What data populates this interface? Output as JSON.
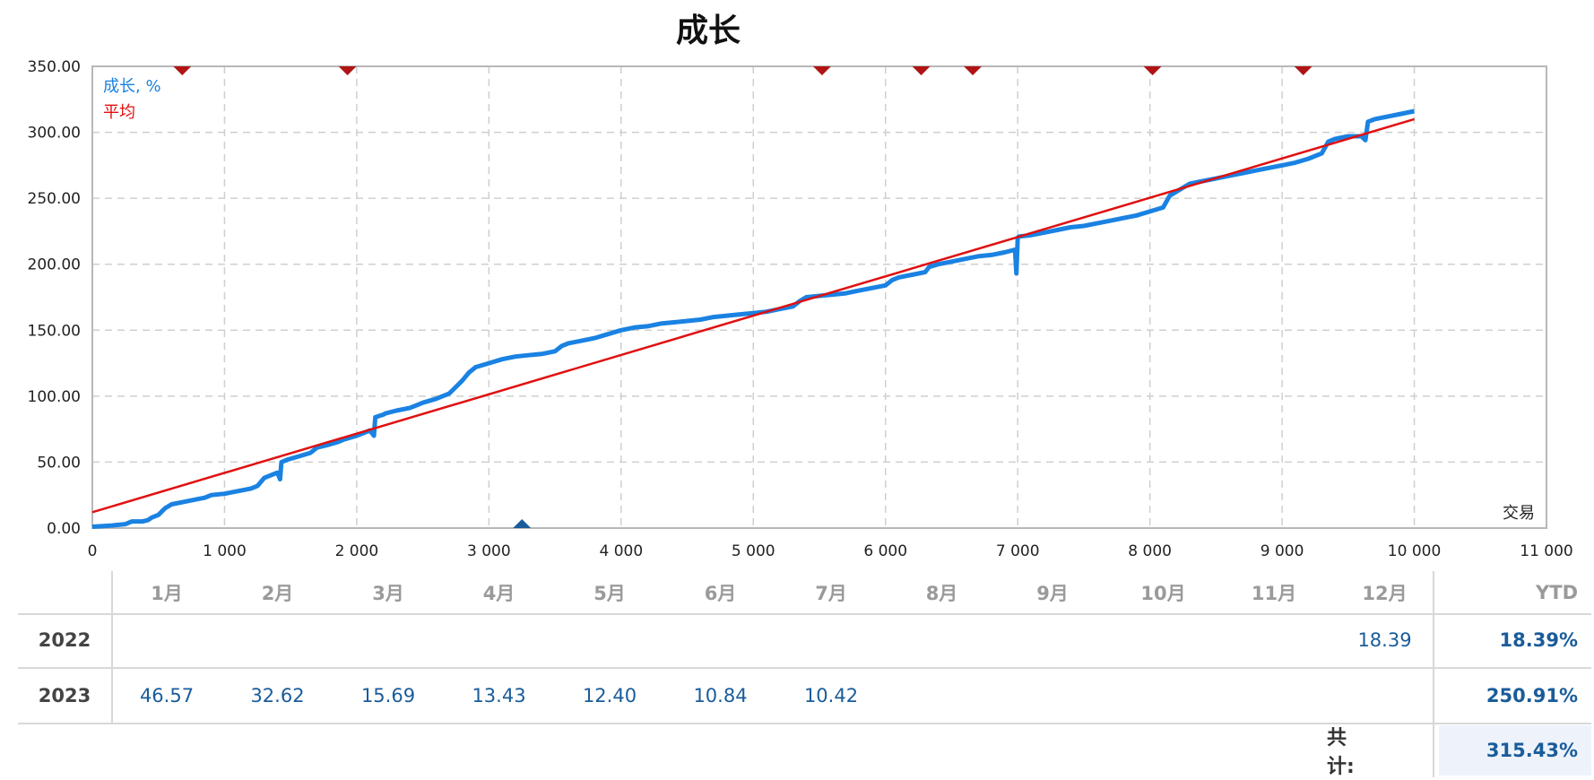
{
  "chart_data": {
    "type": "line",
    "title": "成长",
    "x_axis_label": "交易",
    "xlim": [
      0,
      11000
    ],
    "ylim": [
      0,
      350
    ],
    "x_ticks": [
      {
        "value": 0,
        "label": "0"
      },
      {
        "value": 1000,
        "label": "1 000"
      },
      {
        "value": 2000,
        "label": "2 000"
      },
      {
        "value": 3000,
        "label": "3 000"
      },
      {
        "value": 4000,
        "label": "4 000"
      },
      {
        "value": 5000,
        "label": "5 000"
      },
      {
        "value": 6000,
        "label": "6 000"
      },
      {
        "value": 7000,
        "label": "7 000"
      },
      {
        "value": 8000,
        "label": "8 000"
      },
      {
        "value": 9000,
        "label": "9 000"
      },
      {
        "value": 10000,
        "label": "10 000"
      },
      {
        "value": 11000,
        "label": "11 000"
      }
    ],
    "y_ticks": [
      {
        "value": 0,
        "label": "0.00"
      },
      {
        "value": 50,
        "label": "50.00"
      },
      {
        "value": 100,
        "label": "100.00"
      },
      {
        "value": 150,
        "label": "150.00"
      },
      {
        "value": 200,
        "label": "200.00"
      },
      {
        "value": 250,
        "label": "250.00"
      },
      {
        "value": 300,
        "label": "300.00"
      },
      {
        "value": 350,
        "label": "350.00"
      }
    ],
    "grid": true,
    "legend_position": "top-left",
    "series": [
      {
        "name": "成长, %",
        "color": "#1a82e2",
        "x": [
          0,
          150,
          250,
          300,
          380,
          420,
          450,
          500,
          550,
          600,
          700,
          800,
          850,
          900,
          1000,
          1100,
          1200,
          1250,
          1300,
          1350,
          1400,
          1420,
          1430,
          1480,
          1550,
          1650,
          1700,
          1780,
          1850,
          1900,
          2000,
          2100,
          2130,
          2140,
          2200,
          2220,
          2300,
          2400,
          2450,
          2500,
          2600,
          2700,
          2750,
          2800,
          2850,
          2900,
          3000,
          3100,
          3200,
          3300,
          3400,
          3500,
          3550,
          3600,
          3700,
          3800,
          3900,
          4000,
          4100,
          4200,
          4300,
          4400,
          4500,
          4600,
          4700,
          4800,
          4900,
          5000,
          5100,
          5200,
          5300,
          5350,
          5400,
          5500,
          5600,
          5700,
          5800,
          5900,
          6000,
          6050,
          6100,
          6200,
          6300,
          6330,
          6400,
          6500,
          6600,
          6700,
          6800,
          6900,
          6980,
          6990,
          7000,
          7010,
          7100,
          7200,
          7300,
          7400,
          7500,
          7600,
          7700,
          7800,
          7900,
          8000,
          8100,
          8150,
          8200,
          8250,
          8300,
          8400,
          8500,
          8600,
          8700,
          8800,
          8900,
          9000,
          9100,
          9200,
          9300,
          9350,
          9400,
          9500,
          9600,
          9630,
          9650,
          9700,
          9800,
          9900,
          10000
        ],
        "values": [
          1,
          2,
          3,
          5,
          5,
          6,
          8,
          10,
          15,
          18,
          20,
          22,
          23,
          25,
          26,
          28,
          30,
          32,
          38,
          40,
          42,
          37,
          50,
          52,
          54,
          57,
          61,
          63,
          65,
          67,
          70,
          74,
          70,
          84,
          86,
          87,
          89,
          91,
          93,
          95,
          98,
          102,
          107,
          112,
          118,
          122,
          125,
          128,
          130,
          131,
          132,
          134,
          138,
          140,
          142,
          144,
          147,
          150,
          152,
          153,
          155,
          156,
          157,
          158,
          160,
          161,
          162,
          163,
          164,
          166,
          168,
          172,
          175,
          176,
          177,
          178,
          180,
          182,
          184,
          188,
          190,
          192,
          194,
          198,
          200,
          202,
          204,
          206,
          207,
          209,
          211,
          193,
          220,
          221,
          222,
          224,
          226,
          228,
          229,
          231,
          233,
          235,
          237,
          240,
          243,
          252,
          255,
          258,
          261,
          263,
          265,
          267,
          269,
          271,
          273,
          275,
          277,
          280,
          284,
          293,
          295,
          297,
          297,
          294,
          308,
          310,
          312,
          314,
          316
        ]
      },
      {
        "name": "平均",
        "color": "#e01010",
        "x": [
          0,
          10000
        ],
        "values": [
          12,
          310
        ]
      }
    ],
    "top_markers_x": [
      680,
      1930,
      5520,
      6270,
      6660,
      8020,
      9160
    ],
    "bottom_markers_x": [
      3250
    ]
  },
  "returns_table": {
    "months": [
      "1月",
      "2月",
      "3月",
      "4月",
      "5月",
      "6月",
      "7月",
      "8月",
      "9月",
      "10月",
      "11月",
      "12月"
    ],
    "ytd_label": "YTD",
    "rows": [
      {
        "year": "2022",
        "values": [
          "",
          "",
          "",
          "",
          "",
          "",
          "",
          "",
          "",
          "",
          "",
          "18.39"
        ],
        "ytd": "18.39%"
      },
      {
        "year": "2023",
        "values": [
          "46.57",
          "32.62",
          "15.69",
          "13.43",
          "12.40",
          "10.84",
          "10.42",
          "",
          "",
          "",
          "",
          ""
        ],
        "ytd": "250.91%"
      }
    ],
    "total_label": "共计:",
    "total_value": "315.43%"
  }
}
